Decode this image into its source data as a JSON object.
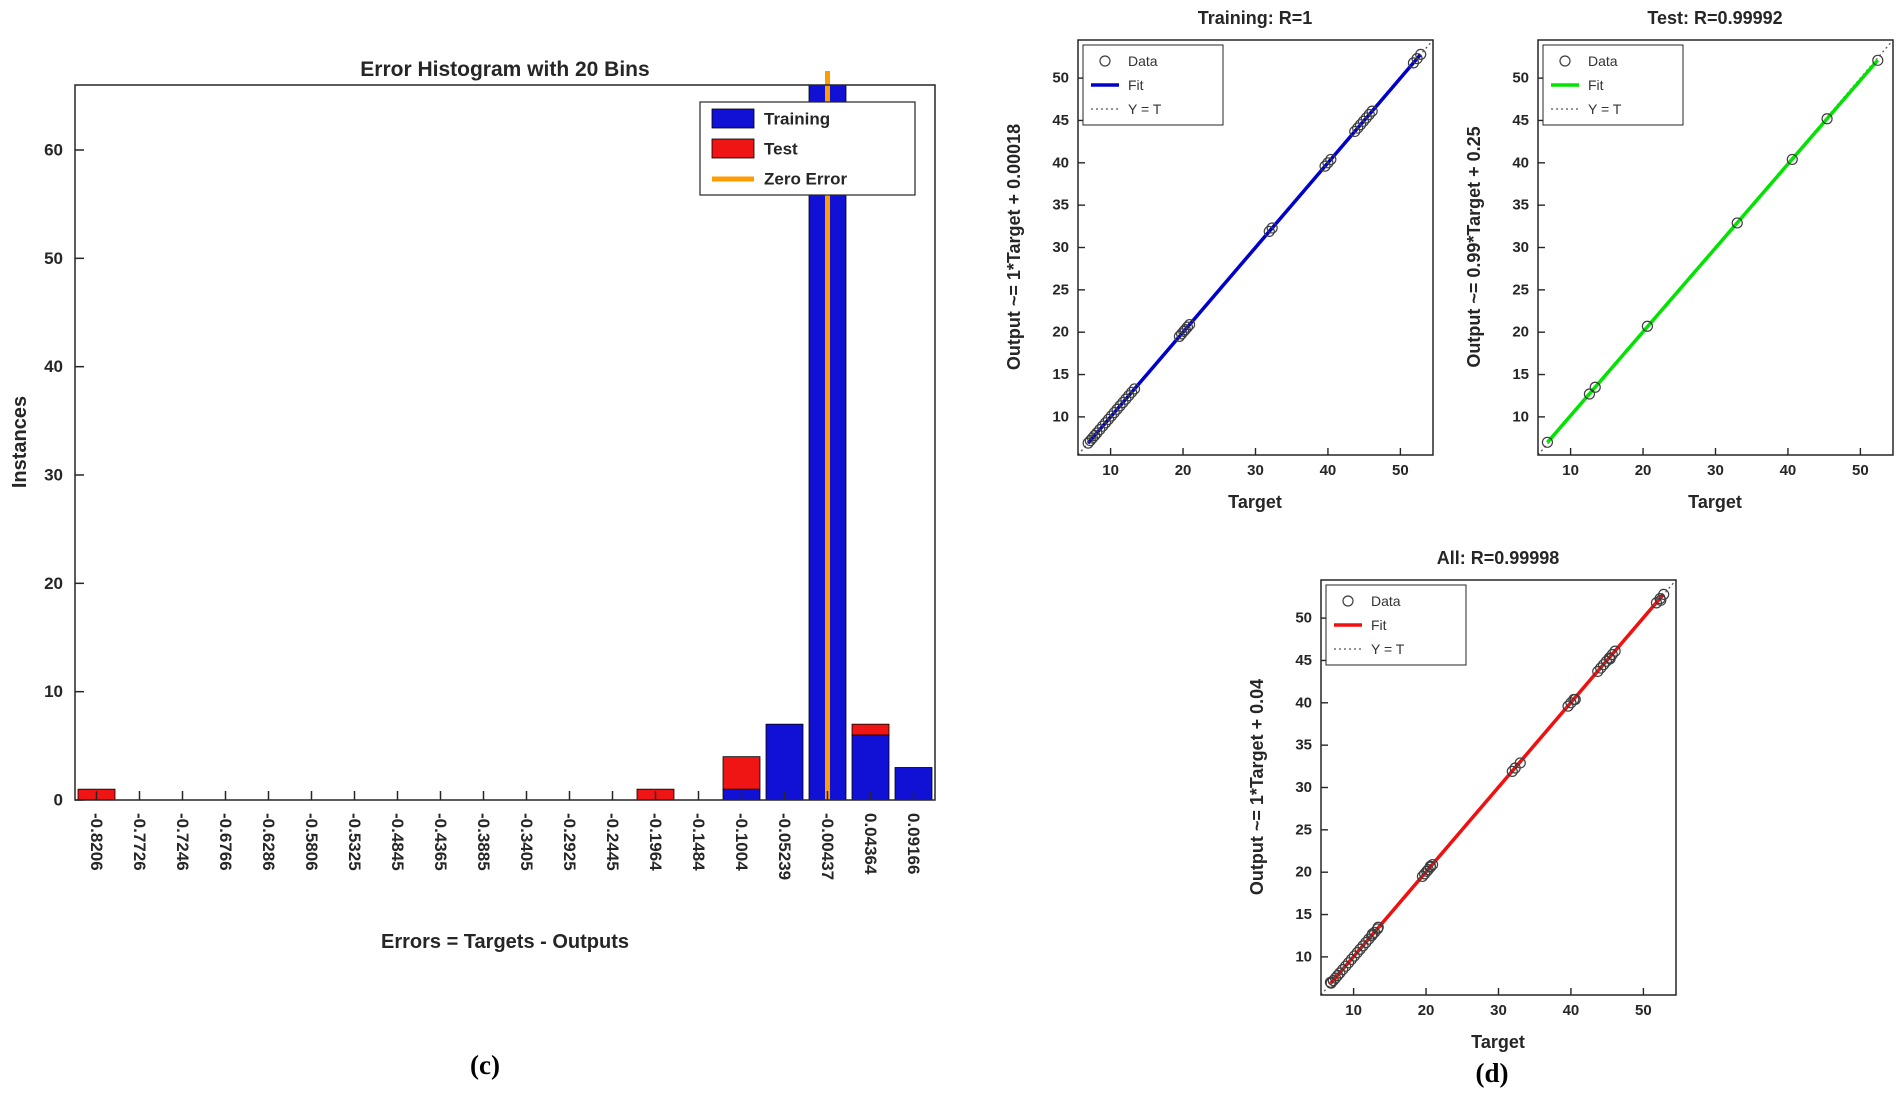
{
  "figure": {
    "label_left": "(c)",
    "label_right": "(d)"
  },
  "chart_data": [
    {
      "id": "error-histogram",
      "type": "bar",
      "title": "Error Histogram with 20 Bins",
      "xlabel": "Errors = Targets - Outputs",
      "ylabel": "Instances",
      "ylim": [
        0,
        66
      ],
      "yticks": [
        0,
        10,
        20,
        30,
        40,
        50,
        60
      ],
      "categories": [
        "-0.8206",
        "-0.7726",
        "-0.7246",
        "-0.6766",
        "-0.6286",
        "-0.5806",
        "-0.5325",
        "-0.4845",
        "-0.4365",
        "-0.3885",
        "-0.3405",
        "-0.2925",
        "-0.2445",
        "-0.1964",
        "-0.1484",
        "-0.1004",
        "-0.05239",
        "-0.00437",
        "0.04364",
        "0.09166"
      ],
      "series": [
        {
          "name": "Training",
          "color": "#1111d6",
          "values": [
            0,
            0,
            0,
            0,
            0,
            0,
            0,
            0,
            0,
            0,
            0,
            0,
            0,
            0,
            0,
            1,
            7,
            66,
            6,
            3
          ]
        },
        {
          "name": "Test",
          "color": "#f01515",
          "values": [
            1,
            0,
            0,
            0,
            0,
            0,
            0,
            0,
            0,
            0,
            0,
            0,
            0,
            1,
            0,
            3,
            0,
            0,
            1,
            0
          ]
        }
      ],
      "zero_error": {
        "label": "Zero Error",
        "color": "#ff9d00",
        "category": "-0.00437"
      },
      "legend": [
        "Training",
        "Test",
        "Zero Error"
      ],
      "grid": false,
      "legend_position": "upper-right"
    },
    {
      "id": "regression-training",
      "type": "scatter",
      "title": "Training: R=1",
      "xlabel": "Target",
      "ylabel": "Output ~= 1*Target + 0.00018",
      "axis_range": [
        5.5,
        54.5
      ],
      "xticks": [
        10,
        20,
        30,
        40,
        50
      ],
      "yticks": [
        10,
        15,
        20,
        25,
        30,
        35,
        40,
        45,
        50
      ],
      "fit": {
        "slope": 1,
        "intercept": 0.00018,
        "color": "#0000cc"
      },
      "legend": [
        "Data",
        "Fit",
        "Y = T"
      ],
      "legend_position": "upper-left",
      "points": [
        [
          6.9,
          6.9
        ],
        [
          7.2,
          7.2
        ],
        [
          7.5,
          7.5
        ],
        [
          7.8,
          7.8
        ],
        [
          8.1,
          8.1
        ],
        [
          8.5,
          8.5
        ],
        [
          8.9,
          8.9
        ],
        [
          9.3,
          9.3
        ],
        [
          9.7,
          9.7
        ],
        [
          10.1,
          10.1
        ],
        [
          10.5,
          10.5
        ],
        [
          10.9,
          10.9
        ],
        [
          11.3,
          11.3
        ],
        [
          11.7,
          11.7
        ],
        [
          12.1,
          12.1
        ],
        [
          12.5,
          12.5
        ],
        [
          12.9,
          12.9
        ],
        [
          13.3,
          13.3
        ],
        [
          19.5,
          19.5
        ],
        [
          19.8,
          19.8
        ],
        [
          20.1,
          20.1
        ],
        [
          20.3,
          20.3
        ],
        [
          20.6,
          20.6
        ],
        [
          20.9,
          20.9
        ],
        [
          31.9,
          31.9
        ],
        [
          32.3,
          32.3
        ],
        [
          39.6,
          39.6
        ],
        [
          40.0,
          40.0
        ],
        [
          40.4,
          40.4
        ],
        [
          43.7,
          43.7
        ],
        [
          44.1,
          44.1
        ],
        [
          44.5,
          44.5
        ],
        [
          44.9,
          44.9
        ],
        [
          45.3,
          45.3
        ],
        [
          45.7,
          45.7
        ],
        [
          46.1,
          46.1
        ],
        [
          51.8,
          51.8
        ],
        [
          52.3,
          52.3
        ],
        [
          52.8,
          52.8
        ]
      ]
    },
    {
      "id": "regression-test",
      "type": "scatter",
      "title": "Test: R=0.99992",
      "xlabel": "Target",
      "ylabel": "Output ~= 0.99*Target + 0.25",
      "axis_range": [
        5.5,
        54.5
      ],
      "xticks": [
        10,
        20,
        30,
        40,
        50
      ],
      "yticks": [
        10,
        15,
        20,
        25,
        30,
        35,
        40,
        45,
        50
      ],
      "fit": {
        "slope": 0.99,
        "intercept": 0.25,
        "color": "#00e400"
      },
      "legend": [
        "Data",
        "Fit",
        "Y = T"
      ],
      "legend_position": "upper-left",
      "points": [
        [
          6.8,
          7.0
        ],
        [
          12.6,
          12.7
        ],
        [
          13.4,
          13.5
        ],
        [
          20.6,
          20.7
        ],
        [
          33.0,
          32.9
        ],
        [
          40.6,
          40.4
        ],
        [
          45.4,
          45.2
        ],
        [
          52.4,
          52.1
        ]
      ]
    },
    {
      "id": "regression-all",
      "type": "scatter",
      "title": "All: R=0.99998",
      "xlabel": "Target",
      "ylabel": "Output ~= 1*Target + 0.04",
      "axis_range": [
        5.5,
        54.5
      ],
      "xticks": [
        10,
        20,
        30,
        40,
        50
      ],
      "yticks": [
        10,
        15,
        20,
        25,
        30,
        35,
        40,
        45,
        50
      ],
      "fit": {
        "slope": 1,
        "intercept": 0.04,
        "color": "#f01010"
      },
      "legend": [
        "Data",
        "Fit",
        "Y = T"
      ],
      "legend_position": "upper-left",
      "points": [
        [
          6.9,
          6.9
        ],
        [
          7.2,
          7.2
        ],
        [
          7.5,
          7.5
        ],
        [
          7.8,
          7.8
        ],
        [
          8.1,
          8.1
        ],
        [
          8.5,
          8.5
        ],
        [
          8.9,
          8.9
        ],
        [
          9.3,
          9.3
        ],
        [
          9.7,
          9.7
        ],
        [
          10.1,
          10.1
        ],
        [
          10.5,
          10.5
        ],
        [
          10.9,
          10.9
        ],
        [
          11.3,
          11.3
        ],
        [
          11.7,
          11.7
        ],
        [
          12.1,
          12.1
        ],
        [
          12.5,
          12.5
        ],
        [
          12.9,
          12.9
        ],
        [
          13.3,
          13.3
        ],
        [
          19.5,
          19.5
        ],
        [
          19.8,
          19.8
        ],
        [
          20.1,
          20.1
        ],
        [
          20.3,
          20.3
        ],
        [
          20.6,
          20.6
        ],
        [
          20.9,
          20.9
        ],
        [
          31.9,
          31.9
        ],
        [
          32.3,
          32.3
        ],
        [
          39.6,
          39.6
        ],
        [
          40.0,
          40.0
        ],
        [
          40.4,
          40.4
        ],
        [
          43.7,
          43.7
        ],
        [
          44.1,
          44.1
        ],
        [
          44.5,
          44.5
        ],
        [
          44.9,
          44.9
        ],
        [
          45.3,
          45.3
        ],
        [
          45.7,
          45.7
        ],
        [
          46.1,
          46.1
        ],
        [
          51.8,
          51.8
        ],
        [
          52.3,
          52.3
        ],
        [
          52.8,
          52.8
        ],
        [
          6.8,
          7.0
        ],
        [
          12.6,
          12.7
        ],
        [
          13.4,
          13.5
        ],
        [
          20.6,
          20.7
        ],
        [
          33.0,
          32.9
        ],
        [
          40.6,
          40.4
        ],
        [
          45.4,
          45.2
        ],
        [
          52.4,
          52.1
        ]
      ]
    }
  ]
}
